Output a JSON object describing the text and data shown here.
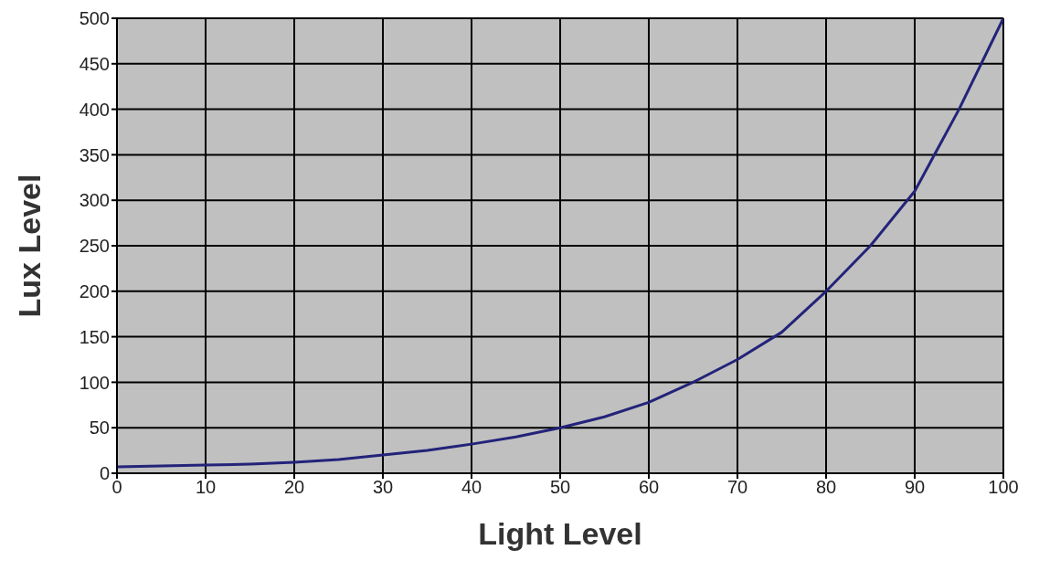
{
  "chart_data": {
    "type": "line",
    "xlabel": "Light Level",
    "ylabel": "Lux Level",
    "x": [
      0,
      5,
      10,
      15,
      20,
      25,
      30,
      35,
      40,
      45,
      50,
      55,
      60,
      65,
      70,
      75,
      80,
      85,
      90,
      95,
      100
    ],
    "series": [
      {
        "color": "#23237a",
        "values": [
          7,
          8,
          9,
          10,
          12,
          15,
          20,
          25,
          32,
          40,
          50,
          62,
          78,
          100,
          125,
          155,
          200,
          250,
          310,
          400,
          500
        ]
      }
    ],
    "xlim": [
      0,
      100
    ],
    "xticks": [
      0,
      10,
      20,
      30,
      40,
      50,
      60,
      70,
      80,
      90,
      100
    ],
    "ylim": [
      0,
      500
    ],
    "yticks": [
      0,
      50,
      100,
      150,
      200,
      250,
      300,
      350,
      400,
      450,
      500
    ],
    "grid": true,
    "marker": "none",
    "line_style": "solid"
  }
}
